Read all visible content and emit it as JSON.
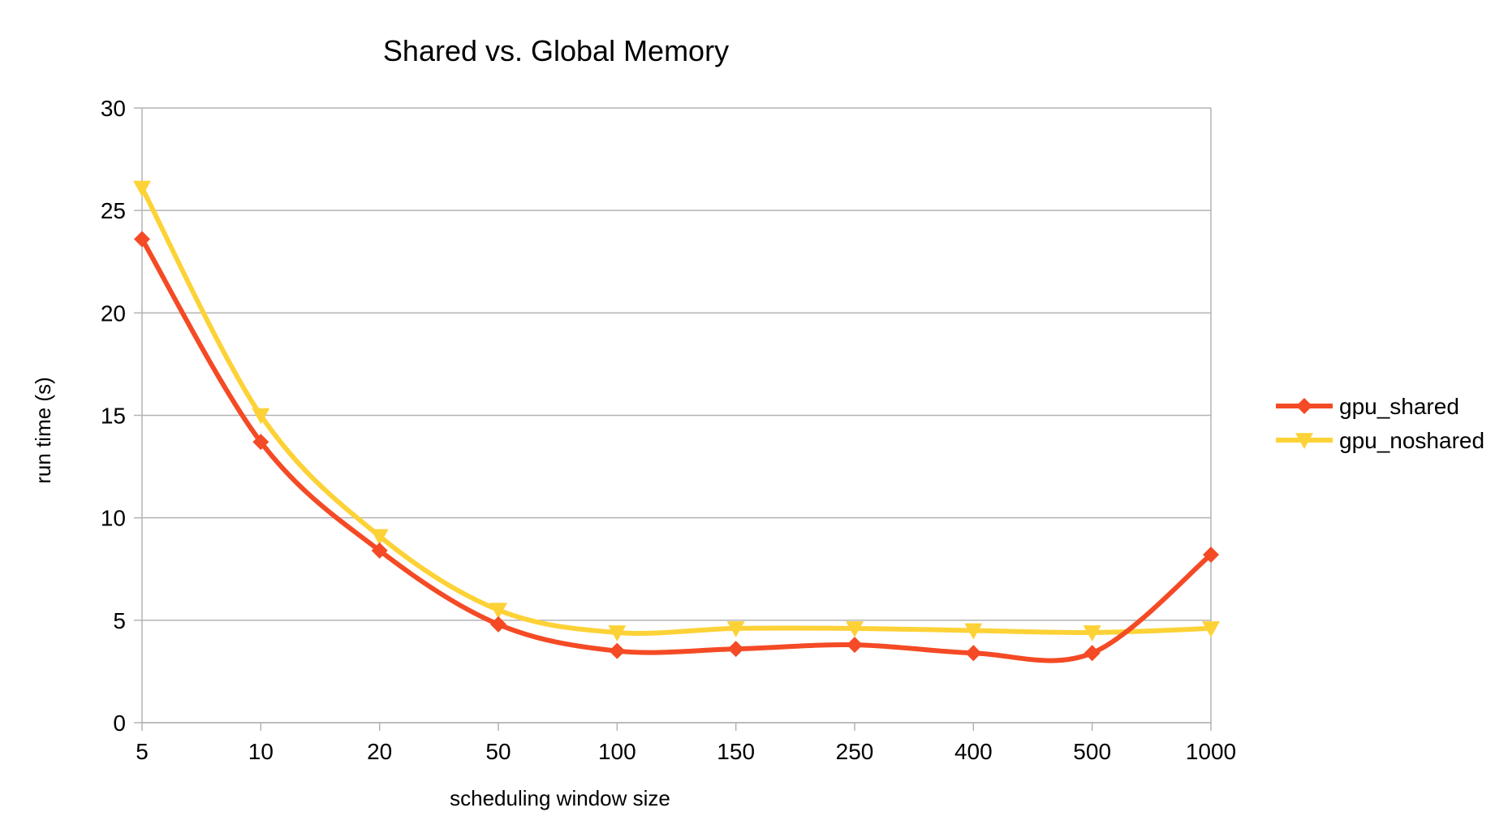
{
  "chart_data": {
    "type": "line",
    "title": "Shared vs. Global Memory",
    "xlabel": "scheduling window size",
    "ylabel": "run time (s)",
    "categories": [
      "5",
      "10",
      "20",
      "50",
      "100",
      "150",
      "250",
      "400",
      "500",
      "1000"
    ],
    "ylim": [
      0,
      30
    ],
    "yticks": [
      0,
      5,
      10,
      15,
      20,
      25,
      30
    ],
    "grid": true,
    "smooth": true,
    "legend_position": "right",
    "series": [
      {
        "name": "gpu_shared",
        "color": "#f44a25",
        "marker": "diamond",
        "values": [
          23.6,
          13.7,
          8.4,
          4.8,
          3.5,
          3.6,
          3.8,
          3.4,
          3.4,
          8.2
        ]
      },
      {
        "name": "gpu_noshared",
        "color": "#fdd237",
        "marker": "triangle-down",
        "values": [
          26.1,
          15.0,
          9.1,
          5.5,
          4.4,
          4.6,
          4.6,
          4.5,
          4.4,
          4.6
        ]
      }
    ]
  }
}
